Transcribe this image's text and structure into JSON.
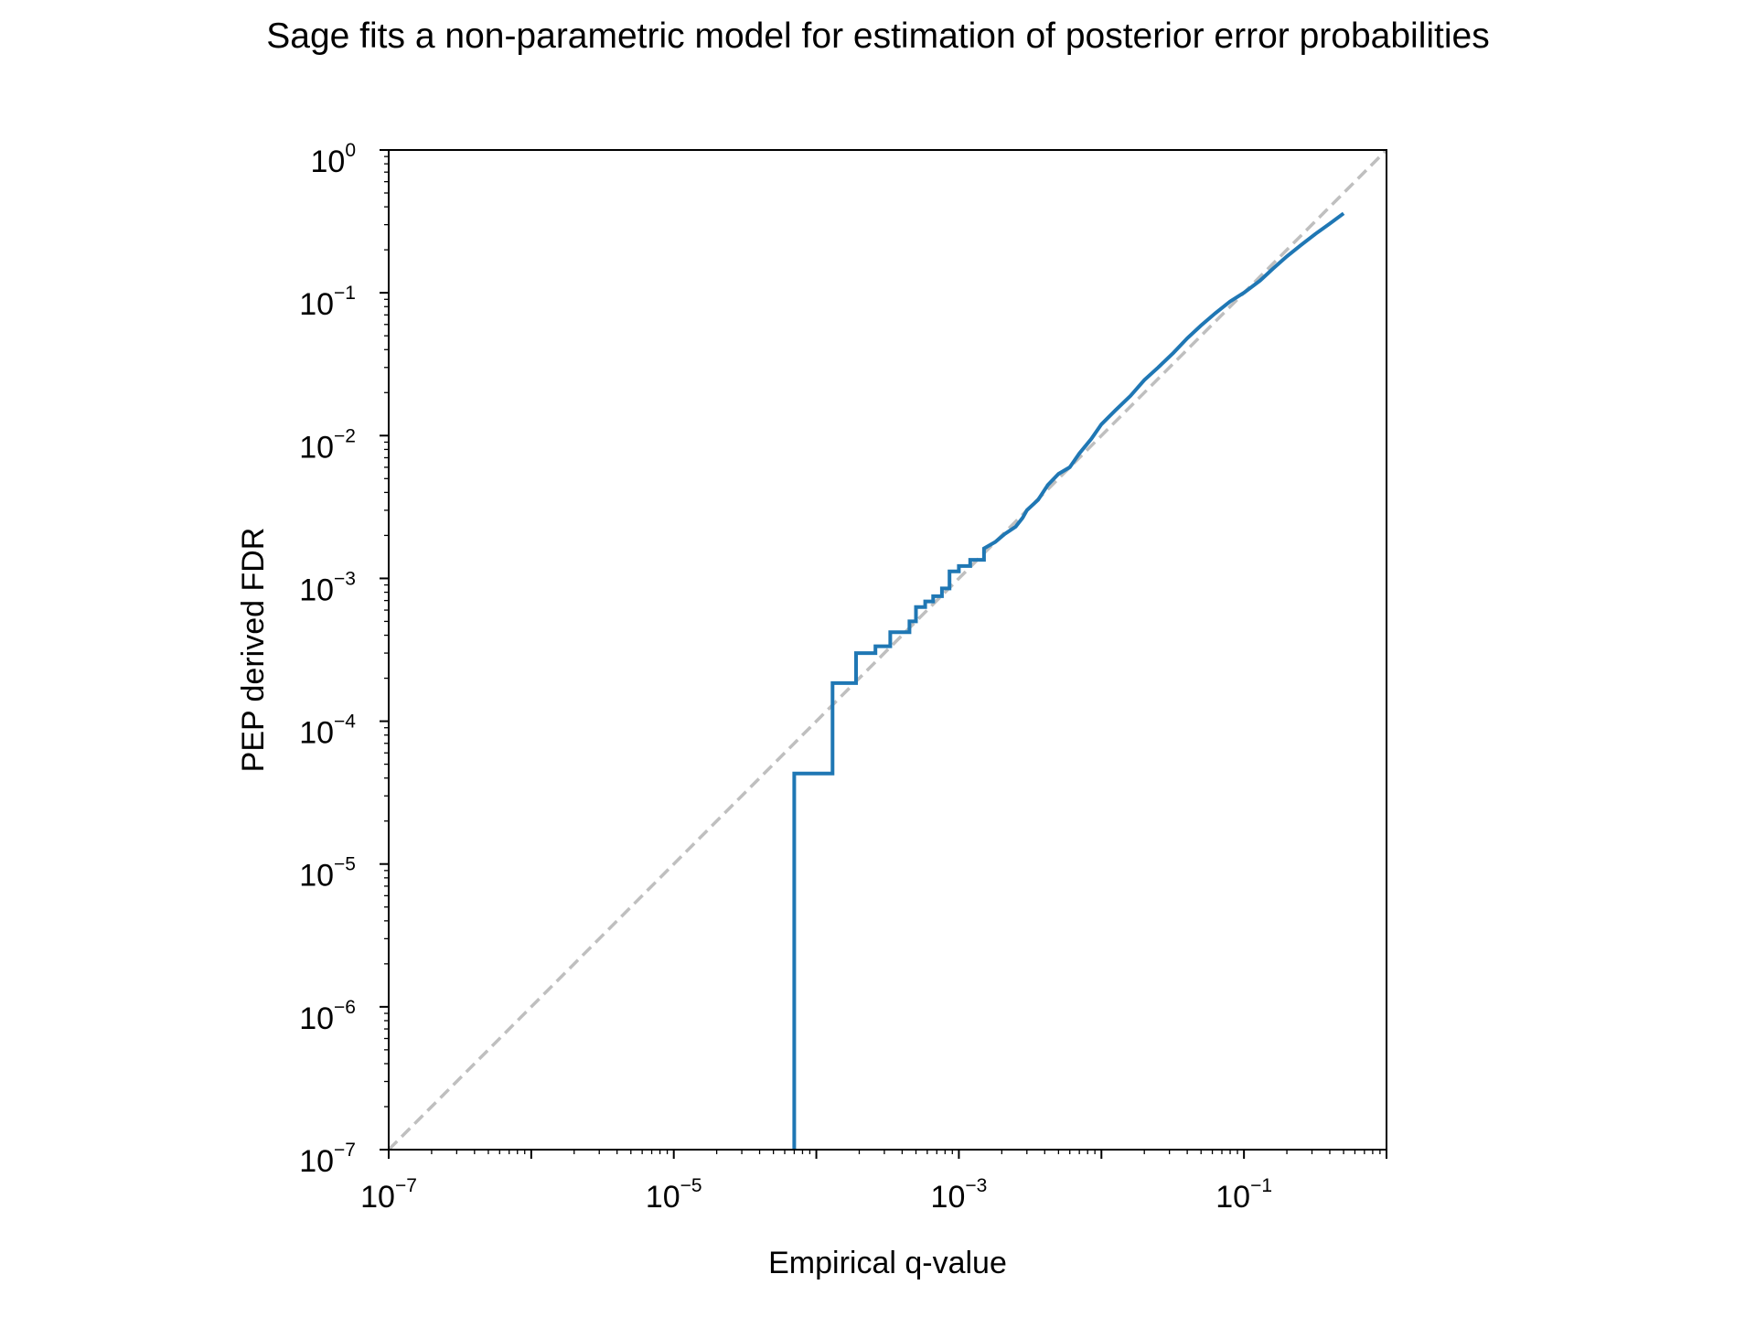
{
  "chart_data": {
    "type": "line",
    "title": "Sage fits a non-parametric model for estimation of posterior error probabilities",
    "xlabel": "Empirical q-value",
    "ylabel": "PEP derived FDR",
    "xscale": "log",
    "yscale": "log",
    "xlim": [
      1e-07,
      1
    ],
    "ylim": [
      1e-07,
      1
    ],
    "grid": false,
    "x_ticks": [
      {
        "value": 1e-07,
        "base": "10",
        "exp": "−7"
      },
      {
        "value": 1e-05,
        "base": "10",
        "exp": "−5"
      },
      {
        "value": 0.001,
        "base": "10",
        "exp": "−3"
      },
      {
        "value": 0.1,
        "base": "10",
        "exp": "−1"
      }
    ],
    "y_ticks": [
      {
        "value": 1e-07,
        "base": "10",
        "exp": "−7"
      },
      {
        "value": 1e-06,
        "base": "10",
        "exp": "−6"
      },
      {
        "value": 1e-05,
        "base": "10",
        "exp": "−5"
      },
      {
        "value": 0.0001,
        "base": "10",
        "exp": "−4"
      },
      {
        "value": 0.001,
        "base": "10",
        "exp": "−3"
      },
      {
        "value": 0.01,
        "base": "10",
        "exp": "−2"
      },
      {
        "value": 0.1,
        "base": "10",
        "exp": "−1"
      },
      {
        "value": 1,
        "base": "10",
        "exp": "0"
      }
    ],
    "series": [
      {
        "color": "#1f77b4",
        "step": true,
        "x": [
          7e-05,
          7e-05,
          0.00013,
          0.00013,
          0.00019,
          0.00019,
          0.00026,
          0.00026,
          0.00033,
          0.00033,
          0.00045,
          0.00045,
          0.0005,
          0.0005,
          0.00058,
          0.00058,
          0.00066,
          0.00066,
          0.00076,
          0.00076,
          0.00086,
          0.00086,
          0.001,
          0.001,
          0.0012,
          0.0012,
          0.0015,
          0.0015,
          0.0018,
          0.0021,
          0.0025,
          0.0028,
          0.003,
          0.0036,
          0.0042,
          0.005,
          0.006,
          0.007,
          0.0085,
          0.01,
          0.0125,
          0.016,
          0.02,
          0.025,
          0.032,
          0.04,
          0.05,
          0.063,
          0.08,
          0.1,
          0.13,
          0.16,
          0.2,
          0.25,
          0.32,
          0.4,
          0.5
        ],
        "y": [
          1e-07,
          4.3e-05,
          4.3e-05,
          0.000185,
          0.000185,
          0.0003,
          0.0003,
          0.000335,
          0.000335,
          0.00042,
          0.00042,
          0.0005,
          0.0005,
          0.00063,
          0.00063,
          0.00069,
          0.00069,
          0.00075,
          0.00075,
          0.00085,
          0.00085,
          0.00112,
          0.00112,
          0.00122,
          0.00122,
          0.00135,
          0.00135,
          0.00162,
          0.0018,
          0.00205,
          0.0023,
          0.00265,
          0.003,
          0.00355,
          0.0045,
          0.0054,
          0.006,
          0.0075,
          0.0095,
          0.012,
          0.015,
          0.019,
          0.0245,
          0.03,
          0.038,
          0.048,
          0.059,
          0.072,
          0.087,
          0.1,
          0.122,
          0.148,
          0.18,
          0.215,
          0.26,
          0.305,
          0.36
        ]
      }
    ],
    "reference_line": {
      "x": [
        1e-07,
        1
      ],
      "y": [
        1e-07,
        1
      ],
      "color": "#bfbfbf",
      "style": "dashed"
    }
  }
}
